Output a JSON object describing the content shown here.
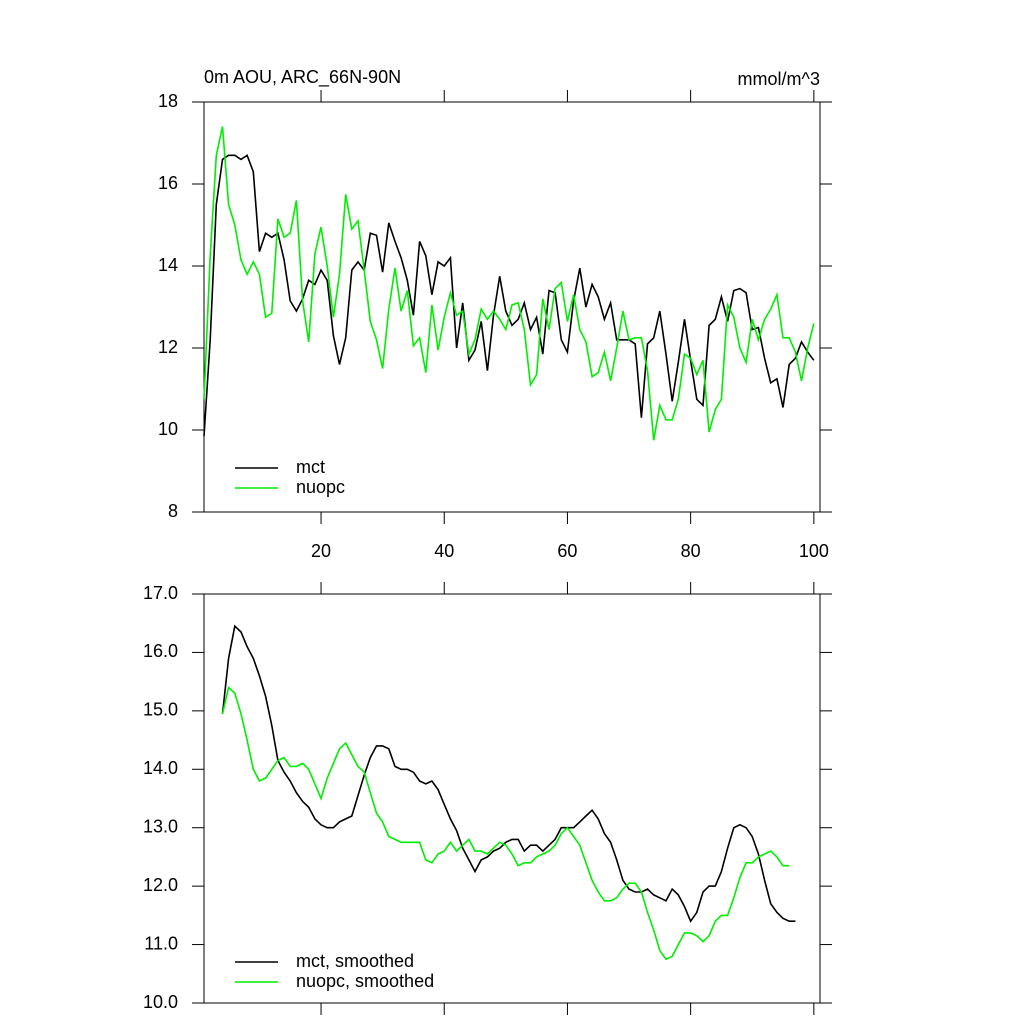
{
  "chart_data": [
    {
      "type": "line",
      "title": "0m AOU, ARC_66N-90N",
      "subtitle": "mmol/m^3",
      "x": [
        1,
        2,
        3,
        4,
        5,
        6,
        7,
        8,
        9,
        10,
        11,
        12,
        13,
        14,
        15,
        16,
        17,
        18,
        19,
        20,
        21,
        22,
        23,
        24,
        25,
        26,
        27,
        28,
        29,
        30,
        31,
        32,
        33,
        34,
        35,
        36,
        37,
        38,
        39,
        40,
        41,
        42,
        43,
        44,
        45,
        46,
        47,
        48,
        49,
        50,
        51,
        52,
        53,
        54,
        55,
        56,
        57,
        58,
        59,
        60,
        61,
        62,
        63,
        64,
        65,
        66,
        67,
        68,
        69,
        70,
        71,
        72,
        73,
        74,
        75,
        76,
        77,
        78,
        79,
        80,
        81,
        82,
        83,
        84,
        85,
        86,
        87,
        88,
        89,
        90,
        91,
        92,
        93,
        94,
        95,
        96,
        97,
        98,
        99,
        100
      ],
      "series": [
        {
          "name": "mct",
          "color": "#000000",
          "values": [
            9.85,
            12.2,
            15.5,
            16.6,
            16.7,
            16.7,
            16.6,
            16.7,
            16.3,
            14.35,
            14.8,
            14.7,
            14.8,
            14.15,
            13.15,
            12.9,
            13.2,
            13.65,
            13.55,
            13.9,
            13.65,
            12.3,
            11.6,
            12.25,
            13.9,
            14.1,
            13.9,
            14.8,
            14.75,
            13.85,
            15.05,
            14.6,
            14.2,
            13.65,
            12.8,
            14.6,
            14.25,
            13.3,
            14.1,
            14.0,
            14.2,
            12.0,
            13.1,
            11.7,
            11.95,
            12.65,
            11.45,
            12.8,
            13.75,
            12.9,
            12.55,
            12.7,
            13.1,
            12.45,
            12.75,
            11.85,
            13.4,
            13.35,
            12.2,
            11.9,
            13.15,
            13.95,
            13.0,
            13.55,
            13.25,
            12.7,
            13.1,
            12.2,
            12.2,
            12.2,
            12.1,
            10.3,
            12.1,
            12.25,
            12.9,
            11.85,
            10.7,
            11.65,
            12.7,
            11.7,
            10.75,
            10.6,
            12.55,
            12.7,
            13.25,
            12.65,
            13.4,
            13.45,
            13.35,
            12.45,
            12.5,
            11.75,
            11.15,
            11.25,
            10.55,
            11.6,
            11.75,
            12.15,
            11.9,
            11.7
          ]
        },
        {
          "name": "nuopc",
          "color": "#00ee00",
          "values": [
            10.75,
            14.25,
            16.7,
            17.4,
            15.5,
            15.0,
            14.15,
            13.8,
            14.1,
            13.8,
            12.75,
            12.85,
            15.15,
            14.7,
            14.8,
            15.6,
            13.15,
            12.15,
            14.3,
            14.95,
            14.0,
            12.75,
            13.8,
            15.75,
            14.9,
            15.1,
            13.9,
            12.65,
            12.2,
            11.5,
            12.95,
            13.95,
            12.9,
            13.4,
            12.05,
            12.25,
            11.4,
            13.05,
            11.95,
            12.75,
            13.35,
            12.8,
            12.9,
            11.85,
            12.2,
            12.95,
            12.7,
            12.9,
            12.7,
            12.45,
            13.05,
            13.1,
            12.45,
            11.1,
            11.35,
            13.2,
            12.45,
            13.45,
            13.6,
            12.65,
            13.3,
            12.45,
            12.15,
            11.3,
            11.4,
            11.9,
            11.2,
            12.0,
            12.9,
            12.2,
            12.25,
            12.25,
            11.45,
            9.75,
            10.6,
            10.25,
            10.25,
            10.75,
            11.85,
            11.75,
            11.35,
            11.7,
            9.95,
            10.5,
            10.75,
            13.05,
            12.75,
            12.0,
            11.65,
            12.7,
            12.2,
            12.7,
            12.95,
            13.3,
            12.25,
            12.25,
            11.9,
            11.2,
            12.0,
            12.6
          ]
        }
      ],
      "xlim": [
        1,
        101
      ],
      "xticks": [
        20,
        40,
        60,
        80,
        100
      ],
      "ylim": [
        8,
        18
      ],
      "yticks": [
        8,
        10,
        12,
        14,
        16,
        18
      ]
    },
    {
      "type": "line",
      "x": [
        4,
        5,
        6,
        7,
        8,
        9,
        10,
        11,
        12,
        13,
        14,
        15,
        16,
        17,
        18,
        19,
        20,
        21,
        22,
        23,
        24,
        25,
        26,
        27,
        28,
        29,
        30,
        31,
        32,
        33,
        34,
        35,
        36,
        37,
        38,
        39,
        40,
        41,
        42,
        43,
        44,
        45,
        46,
        47,
        48,
        49,
        50,
        51,
        52,
        53,
        54,
        55,
        56,
        57,
        58,
        59,
        60,
        61,
        62,
        63,
        64,
        65,
        66,
        67,
        68,
        69,
        70,
        71,
        72,
        73,
        74,
        75,
        76,
        77,
        78,
        79,
        80,
        81,
        82,
        83,
        84,
        85,
        86,
        87,
        88,
        89,
        90,
        91,
        92,
        93,
        94,
        95,
        96,
        97
      ],
      "series": [
        {
          "name": "mct, smoothed",
          "color": "#000000",
          "values": [
            14.95,
            15.9,
            16.45,
            16.35,
            16.1,
            15.9,
            15.6,
            15.25,
            14.75,
            14.15,
            13.95,
            13.8,
            13.6,
            13.45,
            13.35,
            13.15,
            13.05,
            13.0,
            13.0,
            13.1,
            13.15,
            13.2,
            13.55,
            13.9,
            14.2,
            14.4,
            14.4,
            14.35,
            14.05,
            14.0,
            14.0,
            13.95,
            13.8,
            13.75,
            13.8,
            13.65,
            13.4,
            13.15,
            12.95,
            12.65,
            12.45,
            12.25,
            12.45,
            12.5,
            12.6,
            12.65,
            12.75,
            12.8,
            12.8,
            12.6,
            12.7,
            12.7,
            12.6,
            12.7,
            12.8,
            13.0,
            13.0,
            13.0,
            13.1,
            13.2,
            13.3,
            13.15,
            12.9,
            12.75,
            12.45,
            12.1,
            11.95,
            11.9,
            11.9,
            11.95,
            11.85,
            11.8,
            11.75,
            11.95,
            11.85,
            11.65,
            11.4,
            11.55,
            11.9,
            12.0,
            12.0,
            12.25,
            12.65,
            13.0,
            13.05,
            13.0,
            12.85,
            12.55,
            12.1,
            11.7,
            11.55,
            11.45,
            11.4,
            11.4
          ]
        },
        {
          "name": "nuopc, smoothed",
          "color": "#00ee00",
          "values": [
            14.95,
            15.4,
            15.3,
            14.95,
            14.5,
            14.0,
            13.8,
            13.85,
            14.0,
            14.15,
            14.2,
            14.05,
            14.05,
            14.1,
            14.0,
            13.75,
            13.5,
            13.85,
            14.1,
            14.35,
            14.45,
            14.25,
            14.05,
            13.95,
            13.6,
            13.25,
            13.1,
            12.85,
            12.8,
            12.75,
            12.75,
            12.75,
            12.75,
            12.45,
            12.4,
            12.55,
            12.6,
            12.75,
            12.6,
            12.7,
            12.8,
            12.6,
            12.6,
            12.55,
            12.65,
            12.75,
            12.7,
            12.55,
            12.35,
            12.4,
            12.4,
            12.5,
            12.55,
            12.6,
            12.7,
            12.9,
            13.0,
            12.85,
            12.7,
            12.4,
            12.1,
            11.9,
            11.75,
            11.75,
            11.8,
            11.95,
            12.05,
            12.05,
            11.9,
            11.55,
            11.25,
            10.9,
            10.75,
            10.8,
            11.0,
            11.2,
            11.2,
            11.15,
            11.05,
            11.15,
            11.4,
            11.5,
            11.5,
            11.8,
            12.15,
            12.4,
            12.4,
            12.5,
            12.55,
            12.6,
            12.5,
            12.35,
            12.35,
            null
          ]
        }
      ],
      "xlim": [
        1,
        101
      ],
      "xticks": [
        20,
        40,
        60,
        80,
        100
      ],
      "ylim": [
        10,
        17
      ],
      "yticks": [
        {
          "value": 10,
          "label": "10.0"
        },
        {
          "value": 11,
          "label": "11.0"
        },
        {
          "value": 12,
          "label": "12.0"
        },
        {
          "value": 13,
          "label": "13.0"
        },
        {
          "value": 14,
          "label": "14.0"
        },
        {
          "value": 15,
          "label": "15.0"
        },
        {
          "value": 16,
          "label": "16.0"
        },
        {
          "value": 17,
          "label": "17.0"
        }
      ]
    }
  ]
}
